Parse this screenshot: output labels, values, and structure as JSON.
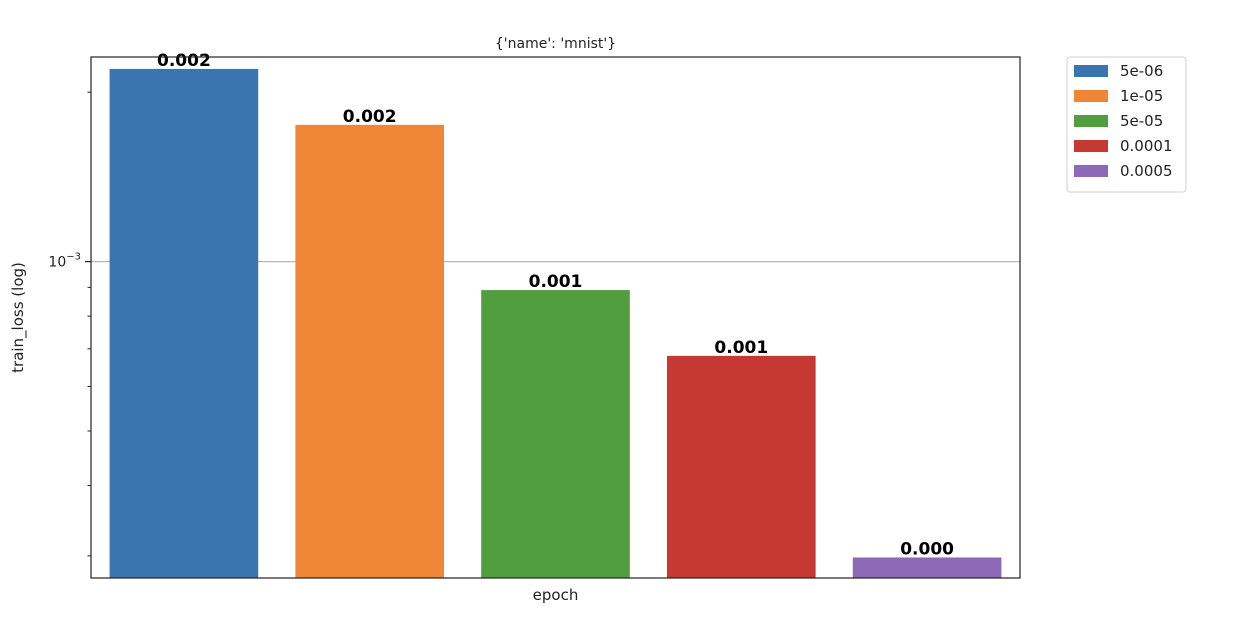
{
  "chart_data": {
    "type": "bar",
    "title": "{'name': 'mnist'}",
    "xlabel": "epoch",
    "ylabel": "train_loss (log)",
    "yscale": "log",
    "ylim": [
      0.000274,
      0.00231
    ],
    "y_ticks": [
      {
        "value": 0.001,
        "base": "10",
        "exponent": "−3"
      }
    ],
    "grid": "major-y",
    "legend_position": "outside-top-right",
    "series": [
      {
        "name": "5e-06",
        "value": 0.0022,
        "label": "0.002",
        "color": "#3a75af"
      },
      {
        "name": "1e-05",
        "value": 0.00175,
        "label": "0.002",
        "color": "#ef8636"
      },
      {
        "name": "5e-05",
        "value": 0.00089,
        "label": "0.001",
        "color": "#519e3e"
      },
      {
        "name": "0.0001",
        "value": 0.00068,
        "label": "0.001",
        "color": "#c53932"
      },
      {
        "name": "0.0005",
        "value": 0.000298,
        "label": "0.000",
        "color": "#8d69b8"
      }
    ]
  }
}
